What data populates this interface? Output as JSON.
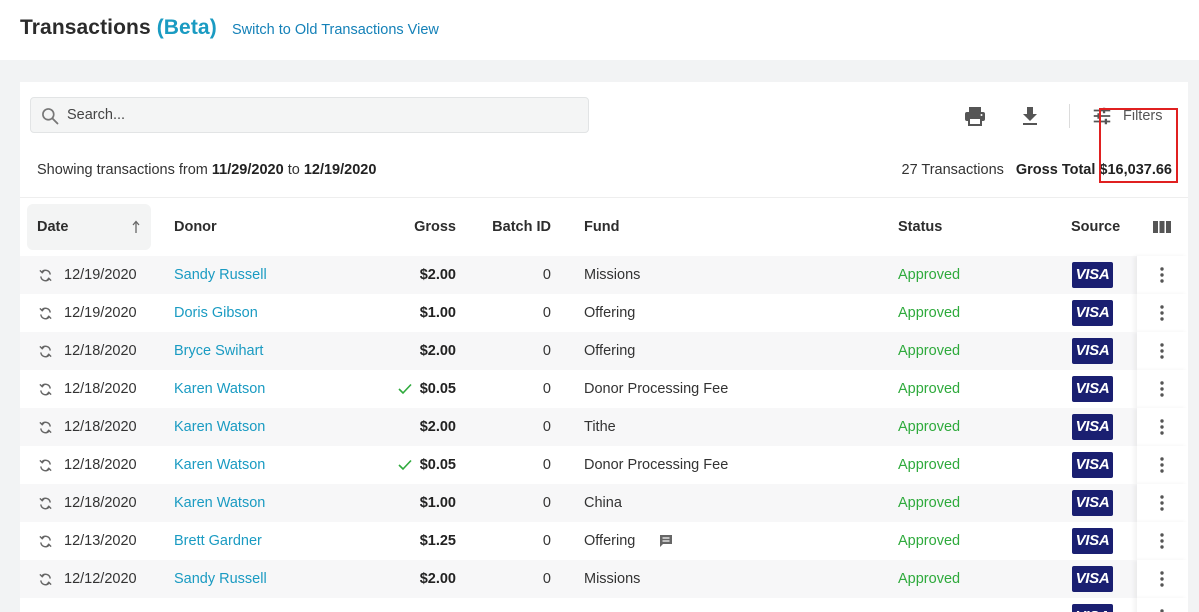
{
  "header": {
    "title": "Transactions",
    "beta": "(Beta)",
    "switch_link": "Switch to Old Transactions View"
  },
  "toolbar": {
    "search_placeholder": "Search...",
    "filters_label": "Filters",
    "icons": [
      "search-icon",
      "print-icon",
      "download-icon",
      "sliders-icon"
    ]
  },
  "summary": {
    "prefix": "Showing transactions from",
    "from": "11/29/2020",
    "to_word": "to",
    "to": "12/19/2020",
    "count": "27 Transactions",
    "gross_total": "Gross Total $16,037.66"
  },
  "table": {
    "columns": {
      "date": "Date",
      "donor": "Donor",
      "gross": "Gross",
      "batch": "Batch ID",
      "fund": "Fund",
      "status": "Status",
      "source": "Source"
    },
    "rows": [
      {
        "date": "12/19/2020",
        "donor": "Sandy Russell",
        "gross": "$2.00",
        "checked": false,
        "batch": "0",
        "fund": "Missions",
        "note": false,
        "status": "Approved",
        "source": "VISA"
      },
      {
        "date": "12/19/2020",
        "donor": "Doris Gibson",
        "gross": "$1.00",
        "checked": false,
        "batch": "0",
        "fund": "Offering",
        "note": false,
        "status": "Approved",
        "source": "VISA"
      },
      {
        "date": "12/18/2020",
        "donor": "Bryce Swihart",
        "gross": "$2.00",
        "checked": false,
        "batch": "0",
        "fund": "Offering",
        "note": false,
        "status": "Approved",
        "source": "VISA"
      },
      {
        "date": "12/18/2020",
        "donor": "Karen Watson",
        "gross": "$0.05",
        "checked": true,
        "batch": "0",
        "fund": "Donor Processing Fee",
        "note": false,
        "status": "Approved",
        "source": "VISA"
      },
      {
        "date": "12/18/2020",
        "donor": "Karen Watson",
        "gross": "$2.00",
        "checked": false,
        "batch": "0",
        "fund": "Tithe",
        "note": false,
        "status": "Approved",
        "source": "VISA"
      },
      {
        "date": "12/18/2020",
        "donor": "Karen Watson",
        "gross": "$0.05",
        "checked": true,
        "batch": "0",
        "fund": "Donor Processing Fee",
        "note": false,
        "status": "Approved",
        "source": "VISA"
      },
      {
        "date": "12/18/2020",
        "donor": "Karen Watson",
        "gross": "$1.00",
        "checked": false,
        "batch": "0",
        "fund": "China",
        "note": false,
        "status": "Approved",
        "source": "VISA"
      },
      {
        "date": "12/13/2020",
        "donor": "Brett Gardner",
        "gross": "$1.25",
        "checked": false,
        "batch": "0",
        "fund": "Offering",
        "note": true,
        "status": "Approved",
        "source": "VISA"
      },
      {
        "date": "12/12/2020",
        "donor": "Sandy Russell",
        "gross": "$2.00",
        "checked": false,
        "batch": "0",
        "fund": "Missions",
        "note": false,
        "status": "Approved",
        "source": "VISA"
      },
      {
        "date": "",
        "donor": "",
        "gross": "",
        "checked": false,
        "batch": "",
        "fund": "",
        "note": false,
        "status": "",
        "source": "VISA"
      }
    ]
  },
  "colors": {
    "accent": "#1a9bc2",
    "link": "#1481b8",
    "approved": "#2eaa3c",
    "visa": "#1a1f71",
    "highlight": "#e02020"
  }
}
